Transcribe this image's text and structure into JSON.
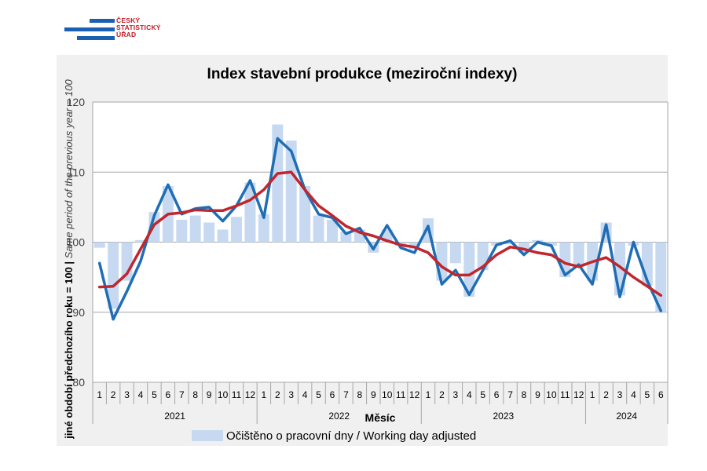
{
  "logo": {
    "lines": [
      "ČESKÝ",
      "STATISTICKÝ",
      "ÚŘAD"
    ]
  },
  "chart_data": {
    "type": "bar",
    "title": "Index stavební produkce (meziroční indexy)",
    "xlabel": "Měsíc",
    "ylabel": "jiné období předchozího roku = 100 | Same period of the previous year = 100",
    "ylim": [
      80,
      120
    ],
    "yticks": [
      80,
      90,
      100,
      110,
      120
    ],
    "grid": true,
    "baseline": 100,
    "month_labels": [
      "1",
      "2",
      "3",
      "4",
      "5",
      "6",
      "7",
      "8",
      "9",
      "10",
      "11",
      "12",
      "1",
      "2",
      "3",
      "4",
      "5",
      "6",
      "7",
      "8",
      "9",
      "10",
      "11",
      "12",
      "1",
      "2",
      "3",
      "4",
      "5",
      "6",
      "7",
      "8",
      "9",
      "10",
      "11",
      "12",
      "1",
      "2",
      "3",
      "4",
      "5",
      "6"
    ],
    "years": [
      {
        "label": "2021",
        "months": 12
      },
      {
        "label": "2022",
        "months": 12
      },
      {
        "label": "2023",
        "months": 12
      },
      {
        "label": "2024",
        "months": 6
      }
    ],
    "legend_position": "bottom",
    "series": [
      {
        "name": "Očištěno o pracovní dny / Working day adjusted",
        "kind": "bar",
        "color": "#c6d9f1",
        "values": [
          99.2,
          90.5,
          94.5,
          100.3,
          104.3,
          108.0,
          103.2,
          103.8,
          102.8,
          101.8,
          103.6,
          108.5,
          104.0,
          116.8,
          114.5,
          108.0,
          103.8,
          103.2,
          101.5,
          101.8,
          98.5,
          101.8,
          99.5,
          99.0,
          103.4,
          94.5,
          97.0,
          92.2,
          96.0,
          99.5,
          99.7,
          98.5,
          100.3,
          99.5,
          95.0,
          96.4,
          94.5,
          102.8,
          92.4,
          99.5,
          93.8,
          90.0
        ]
      },
      {
        "name": "",
        "kind": "line",
        "color": "#1f6eb5",
        "values": [
          97.0,
          89.0,
          93.0,
          97.3,
          103.8,
          108.2,
          104.0,
          104.8,
          105.0,
          103.0,
          105.2,
          108.8,
          103.5,
          114.8,
          113.0,
          107.5,
          104.0,
          103.5,
          101.2,
          102.0,
          99.0,
          102.4,
          99.2,
          98.5,
          102.3,
          94.0,
          96.0,
          92.5,
          96.0,
          99.6,
          100.2,
          98.2,
          100.0,
          99.5,
          95.3,
          96.8,
          94.0,
          102.5,
          92.2,
          100.0,
          94.5,
          90.2
        ]
      },
      {
        "name": "",
        "kind": "line",
        "color": "#c0262d",
        "values": [
          93.6,
          93.7,
          95.5,
          99.0,
          102.5,
          104.0,
          104.2,
          104.6,
          104.5,
          104.5,
          105.2,
          106.0,
          107.5,
          109.8,
          110.0,
          107.5,
          105.2,
          103.8,
          102.3,
          101.4,
          100.9,
          100.2,
          99.6,
          99.3,
          98.5,
          96.5,
          95.3,
          95.3,
          96.5,
          98.2,
          99.3,
          99.0,
          98.5,
          98.2,
          97.0,
          96.5,
          97.2,
          97.8,
          96.5,
          95.0,
          93.7,
          92.4
        ]
      }
    ]
  }
}
